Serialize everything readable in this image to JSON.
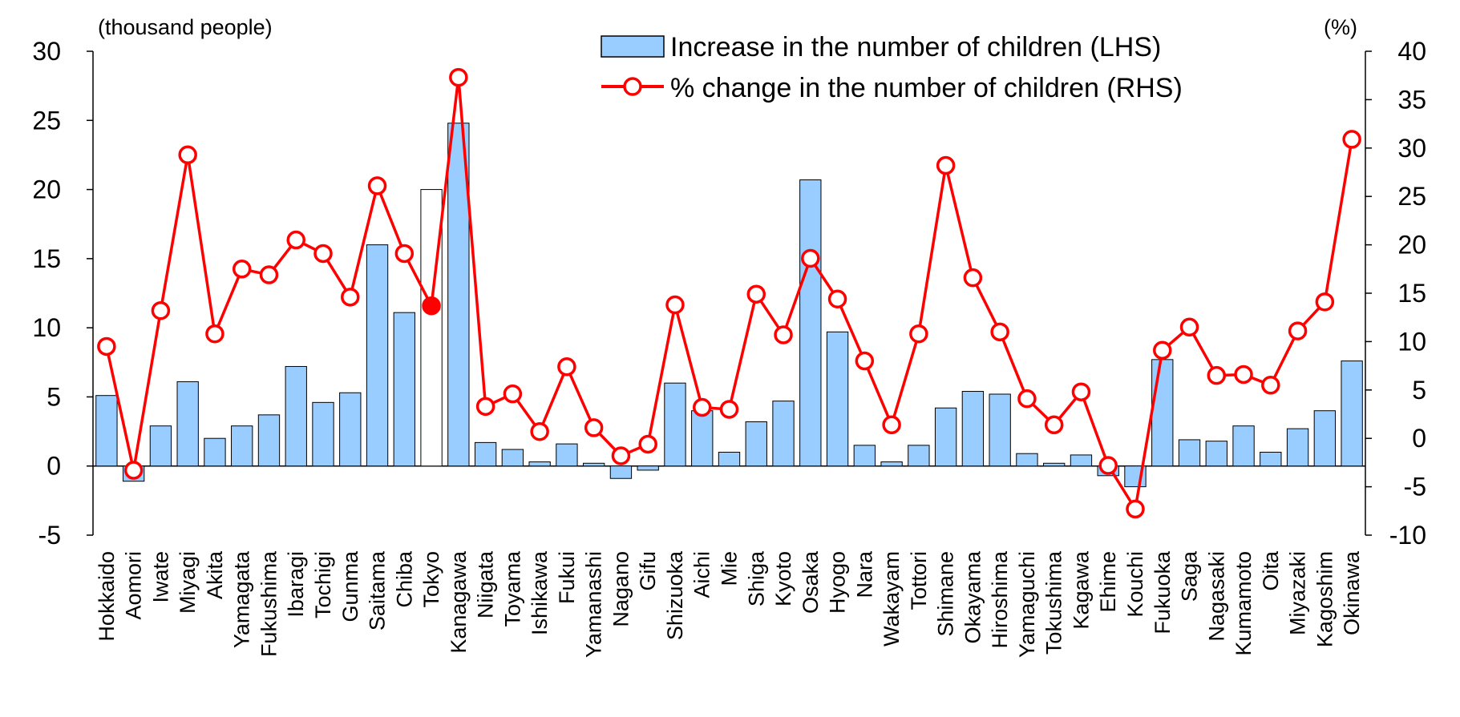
{
  "chart_data": {
    "type": "bar+line",
    "categories": [
      "Hokkaido",
      "Aomori",
      "Iwate",
      "Miyagi",
      "Akita",
      "Yamagata",
      "Fukushima",
      "Ibaragi",
      "Tochigi",
      "Gunma",
      "Saitama",
      "Chiba",
      "Tokyo",
      "Kanagawa",
      "Niigata",
      "Toyama",
      "Ishikawa",
      "Fukui",
      "Yamanashi",
      "Nagano",
      "Gifu",
      "Shizuoka",
      "Aichi",
      "Mie",
      "Shiga",
      "Kyoto",
      "Osaka",
      "Hyogo",
      "Nara",
      "Wakayam",
      "Tottori",
      "Shimane",
      "Okayama",
      "Hiroshima",
      "Yamaguchi",
      "Tokushima",
      "Kagawa",
      "Ehime",
      "Kouchi",
      "Fukuoka",
      "Saga",
      "Nagasaki",
      "Kumamoto",
      "Oita",
      "Miyazaki",
      "Kagoshim",
      "Okinawa"
    ],
    "series": [
      {
        "name": "Increase in the number of children (LHS)",
        "axis": "left",
        "kind": "bar",
        "color": "#99CCFF",
        "highlight_index": 12,
        "highlight_color": "#FFFFFF",
        "values": [
          5.1,
          -1.1,
          2.9,
          6.1,
          2.0,
          2.9,
          3.7,
          7.2,
          4.6,
          5.3,
          16.0,
          11.1,
          20.0,
          24.8,
          1.7,
          1.2,
          0.3,
          1.6,
          0.2,
          -0.9,
          -0.3,
          6.0,
          4.0,
          1.0,
          3.2,
          4.7,
          20.7,
          9.7,
          1.5,
          0.3,
          1.5,
          4.2,
          5.4,
          5.2,
          0.9,
          0.2,
          0.8,
          -0.7,
          -1.5,
          7.7,
          1.9,
          1.8,
          2.9,
          1.0,
          2.7,
          4.0,
          7.6
        ]
      },
      {
        "name": "% change in the number of children (RHS)",
        "axis": "right",
        "kind": "line",
        "color": "#FF0000",
        "highlight_index": 12,
        "values": [
          9.5,
          -3.3,
          13.2,
          29.3,
          10.8,
          17.5,
          16.9,
          20.5,
          19.1,
          14.6,
          26.1,
          19.1,
          13.7,
          37.3,
          3.3,
          4.6,
          0.7,
          7.4,
          1.1,
          -1.8,
          -0.6,
          13.8,
          3.2,
          3.0,
          14.9,
          10.7,
          18.6,
          14.4,
          8.0,
          1.4,
          10.8,
          28.2,
          16.6,
          11.0,
          4.1,
          1.4,
          4.8,
          -2.8,
          -7.3,
          9.1,
          11.5,
          6.5,
          6.6,
          5.5,
          11.1,
          14.1,
          30.9
        ]
      }
    ],
    "y_left": {
      "min": -5,
      "max": 30,
      "step": 5,
      "ticks": [
        "-5",
        "0",
        "5",
        "10",
        "15",
        "20",
        "25",
        "30"
      ],
      "unit_label": "(thousand people)"
    },
    "y_right": {
      "min": -10,
      "max": 40,
      "step": 5,
      "ticks": [
        "-10",
        "-5",
        "0",
        "5",
        "10",
        "15",
        "20",
        "25",
        "30",
        "35",
        "40"
      ],
      "unit_label": "(%)"
    },
    "legend": {
      "placement": "top-center"
    },
    "grid": false
  }
}
